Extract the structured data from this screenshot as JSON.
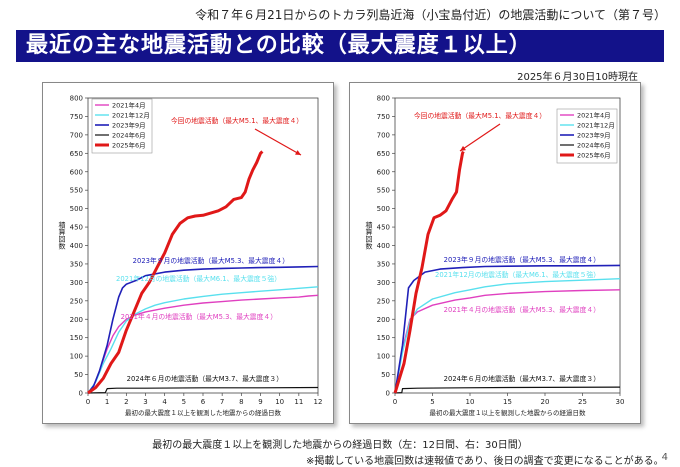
{
  "header": {
    "title": "令和７年６月21日からのトカラ列島近海（小宝島付近）の地震活動について（第７号）"
  },
  "banner": {
    "text": "最近の主な地震活動との比較（最大震度１以上）"
  },
  "timestamp": "2025年６月30日10時現在",
  "caption": "最初の最大震度１以上を観測した地震からの経過日数（左：12日間、右：30日間）",
  "note": "※掲載している地震回数は速報値であり、後日の調査で変更になることがある。",
  "page_number": "4",
  "colors": {
    "2021年4月": "#e040c0",
    "2021年12月": "#59e0ee",
    "2023年9月": "#2020b8",
    "2024年6月": "#111111",
    "2025年6月": "#e01818",
    "banner": "#13128a"
  },
  "chart_data": [
    {
      "type": "line",
      "ylabel": "積算回数",
      "xlabel": "最初の最大震度１以上を観測した地震からの経過日数",
      "xlim": [
        0,
        12
      ],
      "ylim": [
        0,
        800
      ],
      "xticks": [
        "0",
        "1",
        "2",
        "3",
        "4",
        "5",
        "6",
        "7",
        "8",
        "9",
        "10",
        "11",
        "12"
      ],
      "yticks": [
        "0",
        "50",
        "100",
        "150",
        "200",
        "250",
        "300",
        "350",
        "400",
        "450",
        "500",
        "550",
        "600",
        "650",
        "700",
        "750",
        "800"
      ],
      "legend": [
        "2021年4月",
        "2021年12月",
        "2023年9月",
        "2024年6月",
        "2025年6月"
      ],
      "legend_position": "top-left",
      "series": [
        {
          "name": "2021年4月",
          "points": [
            [
              0,
              0
            ],
            [
              0.3,
              20
            ],
            [
              0.6,
              60
            ],
            [
              1,
              120
            ],
            [
              1.3,
              155
            ],
            [
              1.6,
              180
            ],
            [
              2,
              200
            ],
            [
              2.5,
              212
            ],
            [
              3,
              220
            ],
            [
              4,
              230
            ],
            [
              5,
              238
            ],
            [
              6,
              244
            ],
            [
              7,
              248
            ],
            [
              8,
              252
            ],
            [
              9,
              255
            ],
            [
              10,
              258
            ],
            [
              11,
              260
            ],
            [
              11.5,
              263
            ],
            [
              12,
              265
            ]
          ]
        },
        {
          "name": "2021年12月",
          "points": [
            [
              0,
              0
            ],
            [
              0.4,
              30
            ],
            [
              0.8,
              80
            ],
            [
              1.2,
              120
            ],
            [
              1.6,
              165
            ],
            [
              2,
              195
            ],
            [
              2.5,
              215
            ],
            [
              3,
              228
            ],
            [
              3.5,
              238
            ],
            [
              4,
              245
            ],
            [
              5,
              255
            ],
            [
              6,
              262
            ],
            [
              7,
              268
            ],
            [
              8,
              272
            ],
            [
              9,
              276
            ],
            [
              10,
              280
            ],
            [
              11,
              284
            ],
            [
              12,
              288
            ]
          ]
        },
        {
          "name": "2023年9月",
          "points": [
            [
              0,
              0
            ],
            [
              0.3,
              20
            ],
            [
              0.6,
              60
            ],
            [
              1,
              130
            ],
            [
              1.3,
              200
            ],
            [
              1.6,
              260
            ],
            [
              1.8,
              285
            ],
            [
              2,
              295
            ],
            [
              2.5,
              305
            ],
            [
              3,
              318
            ],
            [
              4,
              328
            ],
            [
              5,
              333
            ],
            [
              6,
              336
            ],
            [
              7,
              338
            ],
            [
              8,
              339
            ],
            [
              9,
              340
            ],
            [
              10,
              341
            ],
            [
              11,
              342
            ],
            [
              12,
              343
            ]
          ]
        },
        {
          "name": "2024年6月",
          "points": [
            [
              0,
              0
            ],
            [
              0.9,
              1
            ],
            [
              1,
              12
            ],
            [
              1.5,
              13
            ],
            [
              3,
              13
            ],
            [
              6,
              14
            ],
            [
              9,
              14
            ],
            [
              12,
              15
            ]
          ]
        },
        {
          "name": "2025年6月",
          "points": [
            [
              0,
              0
            ],
            [
              0.4,
              15
            ],
            [
              0.8,
              40
            ],
            [
              1.2,
              80
            ],
            [
              1.6,
              110
            ],
            [
              2,
              170
            ],
            [
              2.4,
              220
            ],
            [
              2.8,
              270
            ],
            [
              3.2,
              300
            ],
            [
              3.6,
              340
            ],
            [
              4,
              380
            ],
            [
              4.4,
              430
            ],
            [
              4.8,
              460
            ],
            [
              5.2,
              475
            ],
            [
              5.6,
              480
            ],
            [
              6,
              482
            ],
            [
              6.4,
              488
            ],
            [
              6.8,
              494
            ],
            [
              7.2,
              505
            ],
            [
              7.6,
              525
            ],
            [
              8,
              530
            ],
            [
              8.2,
              545
            ],
            [
              8.4,
              580
            ],
            [
              8.6,
              605
            ],
            [
              8.8,
              625
            ],
            [
              9,
              650
            ],
            [
              9.1,
              655
            ]
          ]
        }
      ],
      "annotations": [
        {
          "text": "今回の地震活動（最大M5.1、最大震度４）",
          "color": "#e01818"
        },
        {
          "text": "2023年９月の地震活動（最大M5.3、最大震度４）",
          "color": "#2020b8"
        },
        {
          "text": "2021年12月の地震活動（最大M6.1、最大震度５強）",
          "color": "#59e0ee"
        },
        {
          "text": "2021年４月の地震活動（最大M5.3、最大震度４）",
          "color": "#e040c0"
        },
        {
          "text": "2024年６月の地震活動（最大M3.7、最大震度３）",
          "color": "#111111"
        }
      ]
    },
    {
      "type": "line",
      "ylabel": "積算回数",
      "xlabel": "最初の最大震度１以上を観測した地震からの経過日数",
      "xlim": [
        0,
        30
      ],
      "ylim": [
        0,
        800
      ],
      "xticks": [
        "0",
        "5",
        "10",
        "15",
        "20",
        "25",
        "30"
      ],
      "yticks": [
        "0",
        "50",
        "100",
        "150",
        "200",
        "250",
        "300",
        "350",
        "400",
        "450",
        "500",
        "550",
        "600",
        "650",
        "700",
        "750",
        "800"
      ],
      "legend": [
        "2021年4月",
        "2021年12月",
        "2023年9月",
        "2024年6月",
        "2025年6月"
      ],
      "legend_position": "top-right",
      "series": [
        {
          "name": "2021年4月",
          "points": [
            [
              0,
              0
            ],
            [
              1,
              120
            ],
            [
              2,
              200
            ],
            [
              3,
              220
            ],
            [
              5,
              238
            ],
            [
              8,
              252
            ],
            [
              10,
              258
            ],
            [
              12,
              265
            ],
            [
              15,
              270
            ],
            [
              20,
              275
            ],
            [
              25,
              278
            ],
            [
              30,
              280
            ]
          ]
        },
        {
          "name": "2021年12月",
          "points": [
            [
              0,
              0
            ],
            [
              1,
              110
            ],
            [
              2,
              195
            ],
            [
              3,
              228
            ],
            [
              5,
              255
            ],
            [
              8,
              272
            ],
            [
              10,
              280
            ],
            [
              12,
              288
            ],
            [
              15,
              296
            ],
            [
              20,
              302
            ],
            [
              25,
              306
            ],
            [
              30,
              310
            ]
          ]
        },
        {
          "name": "2023年9月",
          "points": [
            [
              0,
              0
            ],
            [
              1,
              130
            ],
            [
              1.8,
              285
            ],
            [
              2.5,
              305
            ],
            [
              4,
              328
            ],
            [
              6,
              336
            ],
            [
              9,
              340
            ],
            [
              12,
              343
            ],
            [
              15,
              344
            ],
            [
              20,
              345
            ],
            [
              25,
              345
            ],
            [
              30,
              346
            ]
          ]
        },
        {
          "name": "2024年6月",
          "points": [
            [
              0,
              0
            ],
            [
              0.9,
              1
            ],
            [
              1,
              12
            ],
            [
              3,
              13
            ],
            [
              9,
              14
            ],
            [
              15,
              15
            ],
            [
              30,
              16
            ]
          ]
        },
        {
          "name": "2025年6月",
          "points": [
            [
              0,
              0
            ],
            [
              1.2,
              80
            ],
            [
              2,
              170
            ],
            [
              2.8,
              270
            ],
            [
              3.6,
              340
            ],
            [
              4.4,
              430
            ],
            [
              5.2,
              475
            ],
            [
              6,
              482
            ],
            [
              6.8,
              494
            ],
            [
              7.6,
              525
            ],
            [
              8.2,
              545
            ],
            [
              8.6,
              605
            ],
            [
              9,
              650
            ],
            [
              9.1,
              655
            ]
          ]
        }
      ],
      "annotations": [
        {
          "text": "今回の地震活動（最大M5.1、最大震度４）",
          "color": "#e01818"
        },
        {
          "text": "2023年９月の地震活動（最大M5.3、最大震度４）",
          "color": "#2020b8"
        },
        {
          "text": "2021年12月の地震活動（最大M6.1、最大震度５強）",
          "color": "#59e0ee"
        },
        {
          "text": "2021年４月の地震活動（最大M5.3、最大震度４）",
          "color": "#e040c0"
        },
        {
          "text": "2024年６月の地震活動（最大M3.7、最大震度３）",
          "color": "#111111"
        }
      ]
    }
  ]
}
